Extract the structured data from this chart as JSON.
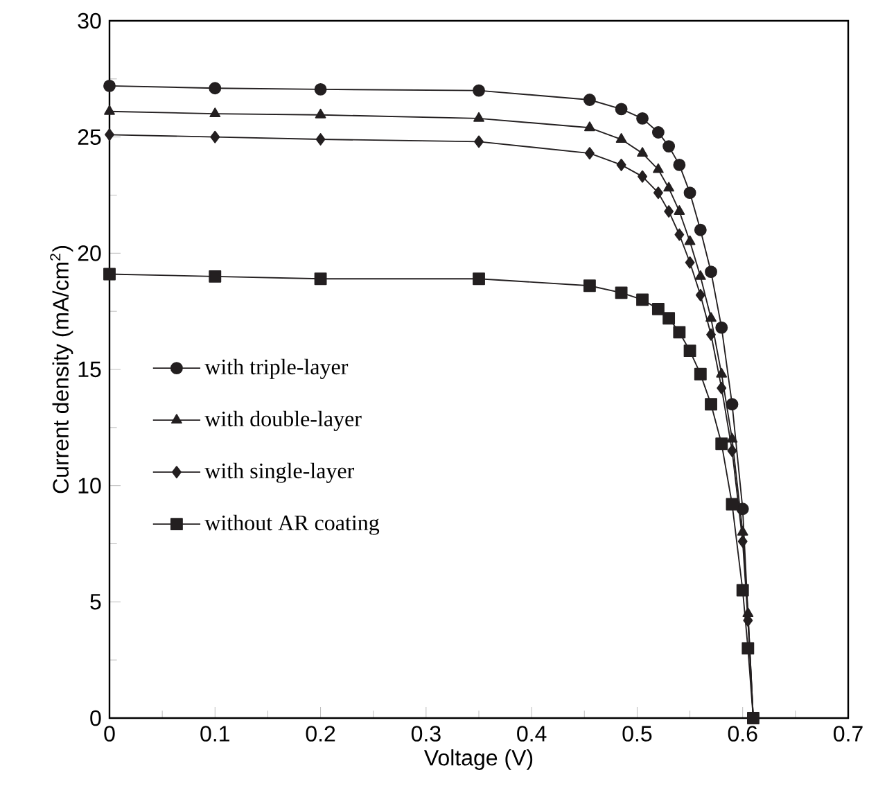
{
  "chart_data": {
    "type": "line",
    "xlabel": "Voltage (V)",
    "ylabel": "Current density (mA/cm$^{2}$)",
    "xlim": [
      0,
      0.7
    ],
    "ylim": [
      0,
      30
    ],
    "xticks": [
      0,
      0.1,
      0.2,
      0.3,
      0.4,
      0.5,
      0.6,
      0.7
    ],
    "yticks": [
      0,
      5,
      10,
      15,
      20,
      25,
      30
    ],
    "legend": "left",
    "grid": false,
    "line_style": "solid",
    "x": [
      0,
      0.1,
      0.2,
      0.35,
      0.455,
      0.485,
      0.505,
      0.52,
      0.53,
      0.54,
      0.55,
      0.56,
      0.57,
      0.58,
      0.59,
      0.6,
      0.605,
      0.61
    ],
    "series": [
      {
        "name": "with triple-layer",
        "color": "#231f20",
        "marker": "circle",
        "values": [
          27.2,
          27.1,
          27.05,
          27.0,
          26.6,
          26.2,
          25.8,
          25.2,
          24.6,
          23.8,
          22.6,
          21.0,
          19.2,
          16.8,
          13.5,
          9.0,
          null,
          0
        ]
      },
      {
        "name": "with double-layer",
        "color": "#231f20",
        "marker": "triangle",
        "values": [
          26.1,
          26.0,
          25.95,
          25.8,
          25.4,
          24.9,
          24.3,
          23.6,
          22.8,
          21.8,
          20.5,
          19.0,
          17.2,
          14.8,
          12.0,
          8.0,
          4.5,
          0
        ]
      },
      {
        "name": "with single-layer",
        "color": "#231f20",
        "marker": "diamond",
        "values": [
          25.1,
          25.0,
          24.9,
          24.8,
          24.3,
          23.8,
          23.3,
          22.6,
          21.8,
          20.8,
          19.6,
          18.2,
          16.5,
          14.2,
          11.5,
          7.6,
          4.2,
          0
        ]
      },
      {
        "name": "without AR coating",
        "color": "#231f20",
        "marker": "square",
        "values": [
          19.1,
          19.0,
          18.9,
          18.9,
          18.6,
          18.3,
          18.0,
          17.6,
          17.2,
          16.6,
          15.8,
          14.8,
          13.5,
          11.8,
          9.2,
          5.5,
          3.0,
          0
        ]
      }
    ]
  }
}
